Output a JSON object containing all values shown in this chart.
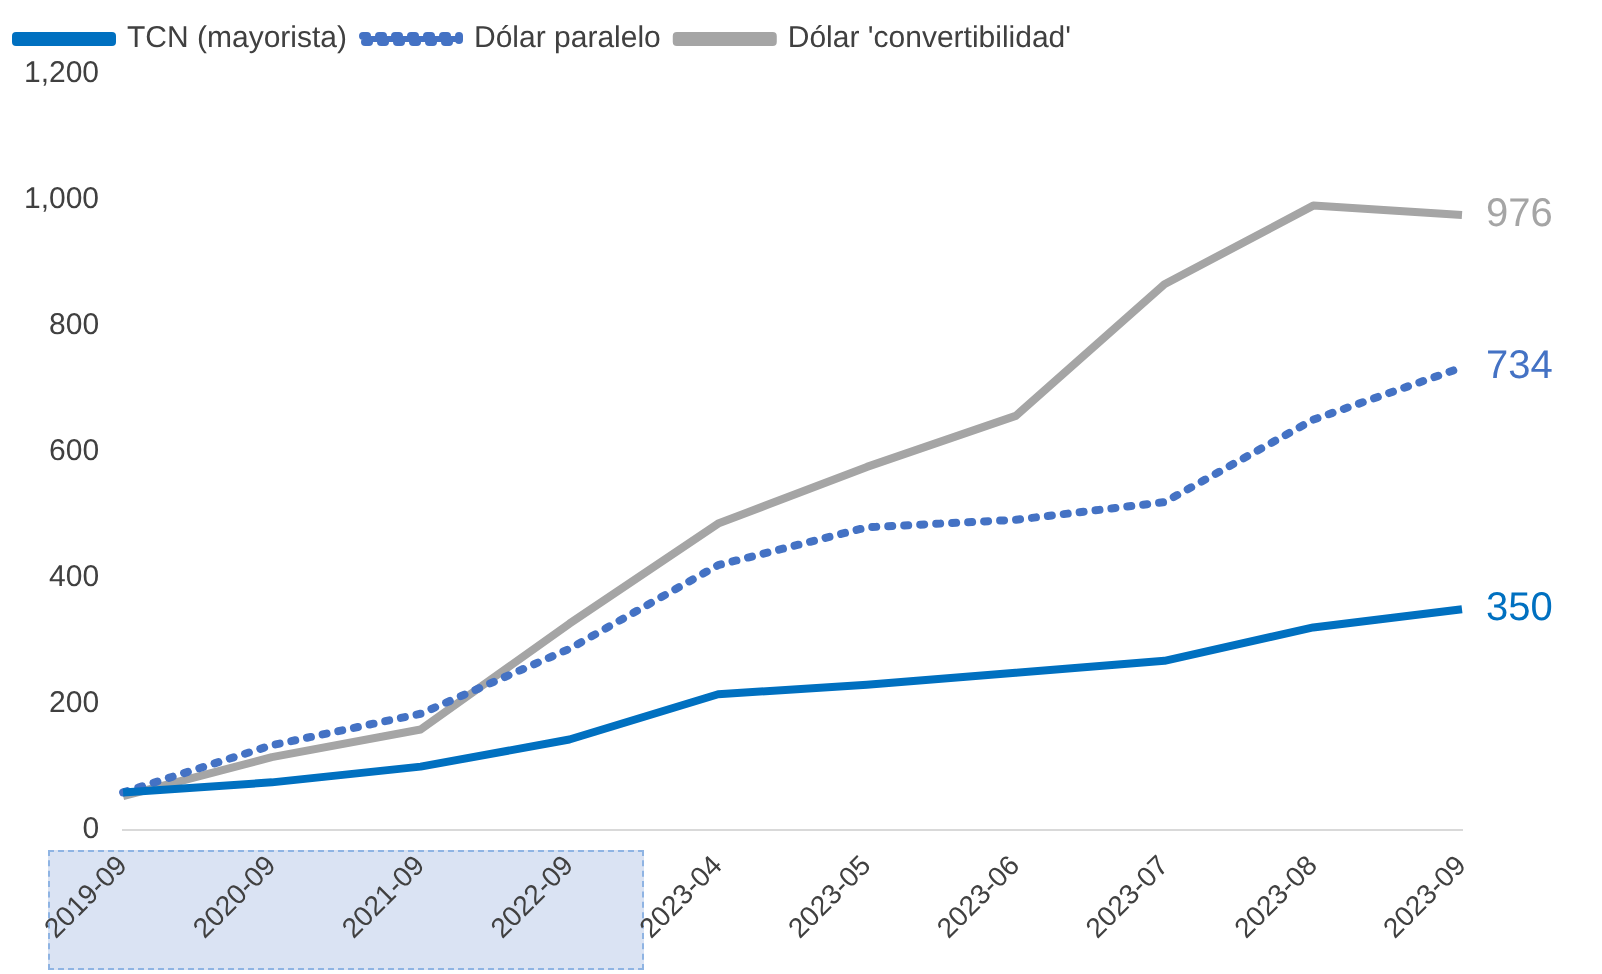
{
  "chart_data": {
    "type": "line",
    "categories": [
      "2019-09",
      "2020-09",
      "2021-09",
      "2022-09",
      "2023-04",
      "2023-05",
      "2023-06",
      "2023-07",
      "2023-08",
      "2023-09"
    ],
    "series": [
      {
        "name": "TCN (mayorista)",
        "color": "#0070c0",
        "line_style": "solid",
        "values": [
          59,
          75,
          100,
          143,
          215,
          230,
          249,
          268,
          321,
          350
        ],
        "value_labels": [
          null,
          null,
          null,
          null,
          null,
          null,
          null,
          null,
          null,
          "350"
        ]
      },
      {
        "name": "Dólar paralelo",
        "color": "#4472c4",
        "line_style": "dotted",
        "values": [
          59,
          134,
          184,
          287,
          420,
          480,
          492,
          520,
          651,
          734
        ],
        "value_labels": [
          null,
          null,
          null,
          null,
          null,
          null,
          null,
          null,
          null,
          "734"
        ]
      },
      {
        "name": "Dólar 'convertibilidad'",
        "color": "#a5a5a5",
        "line_style": "solid",
        "values": [
          53,
          115,
          159,
          327,
          486,
          576,
          657,
          866,
          991,
          976
        ],
        "value_labels": [
          null,
          null,
          null,
          null,
          null,
          null,
          null,
          null,
          null,
          "976"
        ]
      }
    ],
    "ylim": [
      0,
      1200
    ],
    "yticks": [
      0,
      {
        "value": 200,
        "label": "200"
      },
      {
        "value": 400,
        "label": "400"
      },
      {
        "value": 600,
        "label": "600"
      },
      {
        "value": 800,
        "label": "800"
      },
      {
        "value": 1000,
        "label": "1,000"
      },
      {
        "value": 1200,
        "label": "1,200"
      }
    ],
    "grid": false,
    "legend": "top left",
    "marker": "none"
  }
}
